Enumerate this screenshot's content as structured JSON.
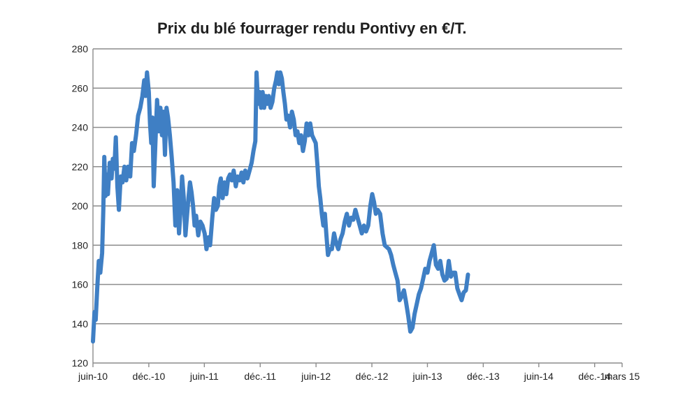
{
  "chart_data": {
    "type": "line",
    "title": "Prix du blé fourrager rendu Pontivy en €/T.",
    "xlabel": "",
    "ylabel": "",
    "ylim": [
      120,
      280
    ],
    "yticks": [
      120,
      140,
      160,
      180,
      200,
      220,
      240,
      260,
      280
    ],
    "x_range": [
      "2010-06",
      "2015-03"
    ],
    "x_ticks": [
      {
        "label": "juin-10",
        "date": "2010-06"
      },
      {
        "label": "déc.-10",
        "date": "2010-12"
      },
      {
        "label": "juin-11",
        "date": "2011-06"
      },
      {
        "label": "déc.-11",
        "date": "2011-12"
      },
      {
        "label": "juin-12",
        "date": "2012-06"
      },
      {
        "label": "déc.-12",
        "date": "2012-12"
      },
      {
        "label": "juin-13",
        "date": "2013-06"
      },
      {
        "label": "déc.-13",
        "date": "2013-12"
      },
      {
        "label": "juin-14",
        "date": "2014-06"
      },
      {
        "label": "déc.-14",
        "date": "2014-12"
      },
      {
        "label": "mars 15",
        "date": "2015-03"
      }
    ],
    "grid": true,
    "legend": "none",
    "color": "#3f7fc4",
    "series": [
      {
        "name": "",
        "points": [
          [
            "2010-06-01",
            131
          ],
          [
            "2010-06-06",
            146
          ],
          [
            "2010-06-10",
            142
          ],
          [
            "2010-06-15",
            158
          ],
          [
            "2010-06-20",
            172
          ],
          [
            "2010-06-25",
            166
          ],
          [
            "2010-07-01",
            176
          ],
          [
            "2010-07-05",
            198
          ],
          [
            "2010-07-08",
            225
          ],
          [
            "2010-07-12",
            205
          ],
          [
            "2010-07-16",
            216
          ],
          [
            "2010-07-20",
            206
          ],
          [
            "2010-07-26",
            222
          ],
          [
            "2010-08-01",
            214
          ],
          [
            "2010-08-05",
            224
          ],
          [
            "2010-08-10",
            219
          ],
          [
            "2010-08-15",
            235
          ],
          [
            "2010-08-20",
            210
          ],
          [
            "2010-08-25",
            198
          ],
          [
            "2010-08-31",
            215
          ],
          [
            "2010-09-06",
            212
          ],
          [
            "2010-09-12",
            220
          ],
          [
            "2010-09-18",
            213
          ],
          [
            "2010-09-24",
            220
          ],
          [
            "2010-10-01",
            215
          ],
          [
            "2010-10-07",
            232
          ],
          [
            "2010-10-13",
            228
          ],
          [
            "2010-10-20",
            236
          ],
          [
            "2010-10-27",
            246
          ],
          [
            "2010-11-03",
            250
          ],
          [
            "2010-11-10",
            256
          ],
          [
            "2010-11-16",
            264
          ],
          [
            "2010-11-20",
            256
          ],
          [
            "2010-11-25",
            268
          ],
          [
            "2010-12-01",
            258
          ],
          [
            "2010-12-05",
            242
          ],
          [
            "2010-12-09",
            232
          ],
          [
            "2010-12-13",
            245
          ],
          [
            "2010-12-17",
            210
          ],
          [
            "2010-12-22",
            230
          ],
          [
            "2010-12-28",
            254
          ],
          [
            "2011-01-03",
            238
          ],
          [
            "2011-01-08",
            250
          ],
          [
            "2011-01-13",
            236
          ],
          [
            "2011-01-18",
            248
          ],
          [
            "2011-01-23",
            226
          ],
          [
            "2011-01-28",
            250
          ],
          [
            "2011-02-02",
            245
          ],
          [
            "2011-02-08",
            236
          ],
          [
            "2011-02-14",
            225
          ],
          [
            "2011-02-20",
            212
          ],
          [
            "2011-02-26",
            190
          ],
          [
            "2011-03-04",
            208
          ],
          [
            "2011-03-10",
            186
          ],
          [
            "2011-03-15",
            198
          ],
          [
            "2011-03-20",
            215
          ],
          [
            "2011-03-25",
            205
          ],
          [
            "2011-03-31",
            185
          ],
          [
            "2011-04-05",
            195
          ],
          [
            "2011-04-10",
            204
          ],
          [
            "2011-04-15",
            212
          ],
          [
            "2011-04-20",
            207
          ],
          [
            "2011-04-25",
            200
          ],
          [
            "2011-04-30",
            190
          ],
          [
            "2011-05-05",
            195
          ],
          [
            "2011-05-12",
            185
          ],
          [
            "2011-05-19",
            192
          ],
          [
            "2011-05-26",
            190
          ],
          [
            "2011-06-02",
            186
          ],
          [
            "2011-06-08",
            178
          ],
          [
            "2011-06-14",
            184
          ],
          [
            "2011-06-20",
            180
          ],
          [
            "2011-06-27",
            194
          ],
          [
            "2011-07-03",
            204
          ],
          [
            "2011-07-09",
            198
          ],
          [
            "2011-07-15",
            200
          ],
          [
            "2011-07-20",
            210
          ],
          [
            "2011-07-25",
            214
          ],
          [
            "2011-07-31",
            204
          ],
          [
            "2011-08-06",
            212
          ],
          [
            "2011-08-12",
            206
          ],
          [
            "2011-08-18",
            214
          ],
          [
            "2011-08-24",
            216
          ],
          [
            "2011-08-30",
            213
          ],
          [
            "2011-09-05",
            218
          ],
          [
            "2011-09-12",
            210
          ],
          [
            "2011-09-18",
            215
          ],
          [
            "2011-09-25",
            213
          ],
          [
            "2011-10-01",
            217
          ],
          [
            "2011-10-07",
            212
          ],
          [
            "2011-10-13",
            218
          ],
          [
            "2011-10-20",
            214
          ],
          [
            "2011-10-27",
            218
          ],
          [
            "2011-11-03",
            222
          ],
          [
            "2011-11-09",
            228
          ],
          [
            "2011-11-15",
            233
          ],
          [
            "2011-11-19",
            268
          ],
          [
            "2011-11-24",
            252
          ],
          [
            "2011-11-29",
            258
          ],
          [
            "2011-12-04",
            250
          ],
          [
            "2011-12-09",
            258
          ],
          [
            "2011-12-14",
            250
          ],
          [
            "2011-12-19",
            256
          ],
          [
            "2011-12-24",
            252
          ],
          [
            "2011-12-29",
            256
          ],
          [
            "2012-01-04",
            250
          ],
          [
            "2012-01-10",
            253
          ],
          [
            "2012-01-16",
            260
          ],
          [
            "2012-01-22",
            264
          ],
          [
            "2012-01-26",
            268
          ],
          [
            "2012-01-31",
            262
          ],
          [
            "2012-02-05",
            268
          ],
          [
            "2012-02-10",
            265
          ],
          [
            "2012-02-15",
            258
          ],
          [
            "2012-02-20",
            252
          ],
          [
            "2012-02-25",
            244
          ],
          [
            "2012-03-02",
            246
          ],
          [
            "2012-03-08",
            240
          ],
          [
            "2012-03-14",
            248
          ],
          [
            "2012-03-20",
            244
          ],
          [
            "2012-03-26",
            236
          ],
          [
            "2012-04-01",
            238
          ],
          [
            "2012-04-07",
            232
          ],
          [
            "2012-04-13",
            236
          ],
          [
            "2012-04-19",
            228
          ],
          [
            "2012-04-25",
            233
          ],
          [
            "2012-05-01",
            242
          ],
          [
            "2012-05-07",
            236
          ],
          [
            "2012-05-13",
            242
          ],
          [
            "2012-05-19",
            236
          ],
          [
            "2012-05-25",
            234
          ],
          [
            "2012-05-31",
            232
          ],
          [
            "2012-06-06",
            220
          ],
          [
            "2012-06-10",
            210
          ],
          [
            "2012-06-15",
            204
          ],
          [
            "2012-06-20",
            196
          ],
          [
            "2012-06-25",
            190
          ],
          [
            "2012-06-30",
            196
          ],
          [
            "2012-07-05",
            185
          ],
          [
            "2012-07-10",
            175
          ],
          [
            "2012-07-16",
            178
          ],
          [
            "2012-07-23",
            178
          ],
          [
            "2012-07-30",
            186
          ],
          [
            "2012-08-06",
            181
          ],
          [
            "2012-08-13",
            178
          ],
          [
            "2012-08-20",
            183
          ],
          [
            "2012-08-27",
            186
          ],
          [
            "2012-09-03",
            192
          ],
          [
            "2012-09-10",
            196
          ],
          [
            "2012-09-17",
            190
          ],
          [
            "2012-09-24",
            194
          ],
          [
            "2012-10-01",
            193
          ],
          [
            "2012-10-08",
            198
          ],
          [
            "2012-10-15",
            194
          ],
          [
            "2012-10-22",
            190
          ],
          [
            "2012-10-29",
            186
          ],
          [
            "2012-11-05",
            190
          ],
          [
            "2012-11-12",
            187
          ],
          [
            "2012-11-19",
            190
          ],
          [
            "2012-11-26",
            200
          ],
          [
            "2012-12-02",
            206
          ],
          [
            "2012-12-08",
            202
          ],
          [
            "2012-12-14",
            196
          ],
          [
            "2012-12-20",
            198
          ],
          [
            "2012-12-28",
            196
          ],
          [
            "2013-01-05",
            186
          ],
          [
            "2013-01-12",
            180
          ],
          [
            "2013-01-19",
            179
          ],
          [
            "2013-01-26",
            178
          ],
          [
            "2013-02-02",
            175
          ],
          [
            "2013-02-09",
            170
          ],
          [
            "2013-02-16",
            166
          ],
          [
            "2013-02-23",
            162
          ],
          [
            "2013-03-02",
            152
          ],
          [
            "2013-03-09",
            154
          ],
          [
            "2013-03-16",
            157
          ],
          [
            "2013-03-23",
            151
          ],
          [
            "2013-03-30",
            144
          ],
          [
            "2013-04-06",
            136
          ],
          [
            "2013-04-13",
            138
          ],
          [
            "2013-04-20",
            145
          ],
          [
            "2013-04-27",
            150
          ],
          [
            "2013-05-04",
            155
          ],
          [
            "2013-05-11",
            158
          ],
          [
            "2013-05-18",
            163
          ],
          [
            "2013-05-25",
            168
          ],
          [
            "2013-06-01",
            166
          ],
          [
            "2013-06-08",
            172
          ],
          [
            "2013-06-15",
            176
          ],
          [
            "2013-06-22",
            180
          ],
          [
            "2013-06-29",
            170
          ],
          [
            "2013-07-06",
            168
          ],
          [
            "2013-07-13",
            172
          ],
          [
            "2013-07-20",
            165
          ],
          [
            "2013-07-27",
            162
          ],
          [
            "2013-08-03",
            163
          ],
          [
            "2013-08-10",
            172
          ],
          [
            "2013-08-17",
            164
          ],
          [
            "2013-08-24",
            166
          ],
          [
            "2013-08-31",
            166
          ],
          [
            "2013-09-07",
            158
          ],
          [
            "2013-09-14",
            155
          ],
          [
            "2013-09-21",
            152
          ],
          [
            "2013-09-28",
            156
          ],
          [
            "2013-10-05",
            157
          ],
          [
            "2013-10-12",
            165
          ]
        ]
      }
    ]
  }
}
